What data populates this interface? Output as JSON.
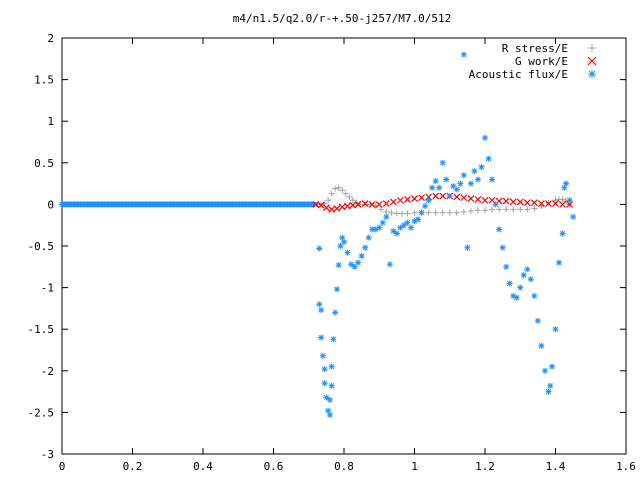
{
  "chart_data": {
    "type": "scatter",
    "title": "m4/n1.5/q2.0/r-+.50-j257/M7.0/512",
    "xlabel": "",
    "ylabel": "",
    "xlim": [
      0,
      1.6
    ],
    "ylim": [
      -3,
      2
    ],
    "x_ticks": [
      "0",
      "0.2",
      "0.4",
      "0.6",
      "0.8",
      "1",
      "1.2",
      "1.4",
      "1.6"
    ],
    "y_ticks": [
      "2",
      "1.5",
      "1",
      "0.5",
      "0",
      "-0.5",
      "-1",
      "-1.5",
      "-2",
      "-2.5",
      "-3"
    ],
    "grid": false,
    "legend_position": "top-right",
    "series": [
      {
        "name": "R stress/E",
        "marker": "+",
        "color": "#a0a0a0",
        "points": [
          [
            0.725,
            0.0
          ],
          [
            0.735,
            0.0
          ],
          [
            0.745,
            0.01
          ],
          [
            0.755,
            0.05
          ],
          [
            0.765,
            0.13
          ],
          [
            0.775,
            0.19
          ],
          [
            0.785,
            0.2
          ],
          [
            0.795,
            0.17
          ],
          [
            0.805,
            0.13
          ],
          [
            0.815,
            0.09
          ],
          [
            0.825,
            0.05
          ],
          [
            0.835,
            0.02
          ],
          [
            0.845,
            0.0
          ],
          [
            0.86,
            0.0
          ],
          [
            0.875,
            0.0
          ],
          [
            0.89,
            -0.02
          ],
          [
            0.905,
            -0.06
          ],
          [
            0.92,
            -0.09
          ],
          [
            0.935,
            -0.1
          ],
          [
            0.95,
            -0.11
          ],
          [
            0.965,
            -0.11
          ],
          [
            0.98,
            -0.11
          ],
          [
            1.0,
            -0.1
          ],
          [
            1.02,
            -0.1
          ],
          [
            1.04,
            -0.1
          ],
          [
            1.06,
            -0.1
          ],
          [
            1.08,
            -0.1
          ],
          [
            1.1,
            -0.1
          ],
          [
            1.12,
            -0.1
          ],
          [
            1.14,
            -0.09
          ],
          [
            1.16,
            -0.08
          ],
          [
            1.18,
            -0.07
          ],
          [
            1.2,
            -0.07
          ],
          [
            1.22,
            -0.06
          ],
          [
            1.24,
            -0.06
          ],
          [
            1.26,
            -0.06
          ],
          [
            1.28,
            -0.06
          ],
          [
            1.3,
            -0.06
          ],
          [
            1.32,
            -0.06
          ],
          [
            1.34,
            -0.05
          ],
          [
            1.36,
            -0.02
          ],
          [
            1.38,
            0.02
          ],
          [
            1.4,
            0.05
          ],
          [
            1.41,
            0.06
          ],
          [
            1.42,
            0.06
          ],
          [
            1.43,
            0.04
          ],
          [
            1.44,
            0.0
          ]
        ]
      },
      {
        "name": "G work/E",
        "marker": "x",
        "color": "#ff0000",
        "points": [
          [
            0.72,
            0.0
          ],
          [
            0.735,
            -0.01
          ],
          [
            0.75,
            -0.04
          ],
          [
            0.765,
            -0.06
          ],
          [
            0.78,
            -0.05
          ],
          [
            0.795,
            -0.03
          ],
          [
            0.81,
            -0.02
          ],
          [
            0.825,
            -0.01
          ],
          [
            0.84,
            0.0
          ],
          [
            0.86,
            0.01
          ],
          [
            0.88,
            0.0
          ],
          [
            0.9,
            0.0
          ],
          [
            0.92,
            0.01
          ],
          [
            0.94,
            0.03
          ],
          [
            0.96,
            0.05
          ],
          [
            0.98,
            0.06
          ],
          [
            1.0,
            0.07
          ],
          [
            1.02,
            0.08
          ],
          [
            1.04,
            0.09
          ],
          [
            1.06,
            0.1
          ],
          [
            1.08,
            0.1
          ],
          [
            1.1,
            0.1
          ],
          [
            1.12,
            0.09
          ],
          [
            1.14,
            0.08
          ],
          [
            1.16,
            0.07
          ],
          [
            1.18,
            0.06
          ],
          [
            1.2,
            0.05
          ],
          [
            1.22,
            0.05
          ],
          [
            1.24,
            0.04
          ],
          [
            1.26,
            0.04
          ],
          [
            1.28,
            0.03
          ],
          [
            1.3,
            0.03
          ],
          [
            1.32,
            0.02
          ],
          [
            1.34,
            0.02
          ],
          [
            1.36,
            0.01
          ],
          [
            1.38,
            0.01
          ],
          [
            1.4,
            0.01
          ],
          [
            1.42,
            0.0
          ],
          [
            1.44,
            0.0
          ]
        ]
      },
      {
        "name": "Acoustic flux/E",
        "marker": "*",
        "color": "#1e90ff",
        "points": [
          [
            0.73,
            -0.53
          ],
          [
            0.73,
            -1.2
          ],
          [
            0.735,
            -1.27
          ],
          [
            0.735,
            -1.6
          ],
          [
            0.74,
            -1.82
          ],
          [
            0.745,
            -1.98
          ],
          [
            0.745,
            -2.15
          ],
          [
            0.75,
            -2.32
          ],
          [
            0.755,
            -2.48
          ],
          [
            0.76,
            -2.53
          ],
          [
            0.76,
            -2.35
          ],
          [
            0.765,
            -2.18
          ],
          [
            0.765,
            -1.95
          ],
          [
            0.77,
            -1.62
          ],
          [
            0.775,
            -1.3
          ],
          [
            0.78,
            -1.02
          ],
          [
            0.785,
            -0.73
          ],
          [
            0.79,
            -0.5
          ],
          [
            0.795,
            -0.4
          ],
          [
            0.8,
            -0.45
          ],
          [
            0.81,
            -0.58
          ],
          [
            0.82,
            -0.72
          ],
          [
            0.83,
            -0.75
          ],
          [
            0.84,
            -0.7
          ],
          [
            0.85,
            -0.62
          ],
          [
            0.86,
            -0.52
          ],
          [
            0.87,
            -0.4
          ],
          [
            0.88,
            -0.3
          ],
          [
            0.89,
            -0.3
          ],
          [
            0.9,
            -0.28
          ],
          [
            0.91,
            -0.22
          ],
          [
            0.92,
            -0.15
          ],
          [
            0.93,
            -0.72
          ],
          [
            0.94,
            -0.32
          ],
          [
            0.95,
            -0.35
          ],
          [
            0.96,
            -0.28
          ],
          [
            0.97,
            -0.25
          ],
          [
            0.98,
            -0.22
          ],
          [
            0.99,
            -0.28
          ],
          [
            1.0,
            -0.2
          ],
          [
            1.01,
            -0.18
          ],
          [
            1.02,
            -0.1
          ],
          [
            1.03,
            -0.02
          ],
          [
            1.04,
            0.05
          ],
          [
            1.05,
            0.2
          ],
          [
            1.06,
            0.28
          ],
          [
            1.07,
            0.2
          ],
          [
            1.08,
            0.5
          ],
          [
            1.09,
            0.3
          ],
          [
            1.1,
            0.1
          ],
          [
            1.11,
            0.22
          ],
          [
            1.12,
            0.18
          ],
          [
            1.13,
            0.25
          ],
          [
            1.14,
            0.35
          ],
          [
            1.14,
            1.8
          ],
          [
            1.15,
            -0.52
          ],
          [
            1.16,
            0.25
          ],
          [
            1.17,
            0.4
          ],
          [
            1.18,
            0.3
          ],
          [
            1.19,
            0.45
          ],
          [
            1.2,
            0.8
          ],
          [
            1.21,
            0.55
          ],
          [
            1.22,
            0.3
          ],
          [
            1.23,
            0.0
          ],
          [
            1.24,
            -0.3
          ],
          [
            1.25,
            -0.52
          ],
          [
            1.26,
            -0.75
          ],
          [
            1.27,
            -0.95
          ],
          [
            1.28,
            -1.1
          ],
          [
            1.29,
            -1.12
          ],
          [
            1.3,
            -1.0
          ],
          [
            1.31,
            -0.85
          ],
          [
            1.32,
            -0.78
          ],
          [
            1.33,
            -0.9
          ],
          [
            1.34,
            -1.1
          ],
          [
            1.35,
            -1.4
          ],
          [
            1.36,
            -1.7
          ],
          [
            1.37,
            -2.0
          ],
          [
            1.38,
            -2.25
          ],
          [
            1.385,
            -2.18
          ],
          [
            1.39,
            -1.95
          ],
          [
            1.4,
            -1.5
          ],
          [
            1.41,
            -0.7
          ],
          [
            1.42,
            -0.35
          ],
          [
            1.425,
            0.2
          ],
          [
            1.43,
            0.25
          ],
          [
            1.44,
            0.05
          ],
          [
            1.45,
            -0.15
          ]
        ]
      }
    ]
  }
}
